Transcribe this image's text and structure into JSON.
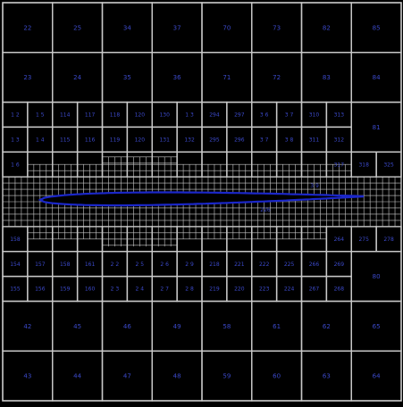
{
  "colors": {
    "background": "#000000",
    "grid_line": "#c8c8c8",
    "label": "#3b49c9",
    "airfoil_fill": "#000000",
    "airfoil_outline": "#1b27c9"
  },
  "mesh": {
    "outer_grid": {
      "cols": 8,
      "rows": 8,
      "labels": [
        [
          "22",
          "25",
          "34",
          "37",
          "70",
          "73",
          "82",
          "85"
        ],
        [
          "23",
          "24",
          "35",
          "36",
          "71",
          "72",
          "83",
          "84"
        ],
        [
          null,
          null,
          null,
          null,
          null,
          null,
          null,
          null
        ],
        [
          null,
          null,
          null,
          null,
          null,
          null,
          null,
          null
        ],
        [
          null,
          null,
          null,
          null,
          null,
          null,
          null,
          null
        ],
        [
          null,
          null,
          null,
          null,
          null,
          null,
          null,
          null
        ],
        [
          "42",
          "45",
          "46",
          "49",
          "58",
          "61",
          "62",
          "65"
        ],
        [
          "43",
          "44",
          "47",
          "48",
          "59",
          "60",
          "63",
          "64"
        ]
      ]
    },
    "middle_grid": {
      "cols": 16,
      "rows": 8,
      "labels": [
        [
          "1 2",
          "1 5",
          "114",
          "117",
          "118",
          "120",
          "130",
          "1 3",
          "294",
          "297",
          "3 6",
          "3 7",
          "310",
          "313",
          null,
          null
        ],
        [
          "1 3",
          "1 4",
          "115",
          "116",
          "119",
          "120",
          "131",
          "132",
          "295",
          "296",
          "3 7",
          "3 8",
          "311",
          "312",
          null,
          null
        ],
        [
          "1 6",
          null,
          null,
          null,
          null,
          null,
          null,
          null,
          null,
          null,
          null,
          null,
          null,
          "317",
          "318",
          "325"
        ],
        [
          null,
          null,
          null,
          null,
          null,
          null,
          null,
          null,
          null,
          null,
          null,
          null,
          null,
          null,
          null,
          null
        ],
        [
          null,
          null,
          null,
          null,
          null,
          null,
          null,
          null,
          null,
          null,
          null,
          null,
          null,
          null,
          null,
          null
        ],
        [
          "158",
          null,
          null,
          null,
          null,
          null,
          null,
          null,
          null,
          null,
          null,
          null,
          null,
          "264",
          "275",
          "278"
        ],
        [
          "154",
          "157",
          "158",
          "161",
          "2 2",
          "2 5",
          "2 6",
          "2 9",
          "218",
          "221",
          "222",
          "225",
          "266",
          "269",
          null,
          null
        ],
        [
          "155",
          "156",
          "159",
          "160",
          "2 3",
          "2 4",
          "2 7",
          "2 8",
          "219",
          "220",
          "223",
          "224",
          "267",
          "268",
          null,
          null
        ]
      ]
    },
    "merged_cells": [
      {
        "label": "81"
      },
      {
        "label": "80"
      }
    ],
    "near_airfoil_labels": [
      {
        "label": "226"
      },
      {
        "label": "3 9"
      }
    ]
  },
  "airfoil": {
    "name": "airfoil-profile"
  }
}
